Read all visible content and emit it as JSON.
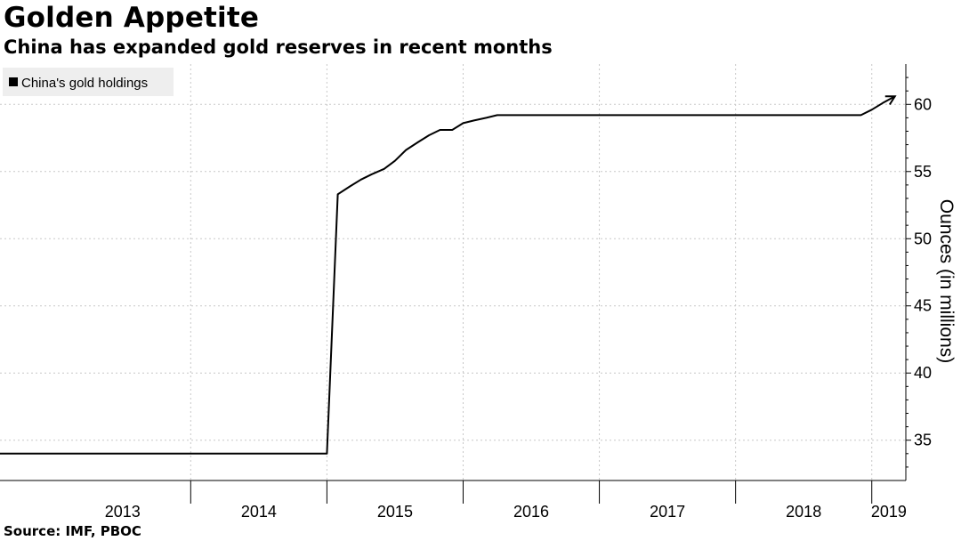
{
  "header": {
    "title": "Golden Appetite",
    "subtitle": "China has expanded gold reserves in recent months"
  },
  "footer": {
    "source": "Source: IMF, PBOC"
  },
  "legend": {
    "label": "China's gold holdings",
    "swatch_color": "#000000",
    "placement": "top-left"
  },
  "chart_data": {
    "type": "line",
    "title": "Golden Appetite",
    "subtitle": "China has expanded gold reserves in recent months",
    "ylabel": "Ounces (in millions)",
    "xlabel": "",
    "ylim": [
      32,
      63
    ],
    "xlim": [
      2012.6,
      2019.25
    ],
    "yticks": [
      35,
      40,
      45,
      50,
      55,
      60
    ],
    "x_year_labels": [
      "2013",
      "2014",
      "2015",
      "2016",
      "2017",
      "2018",
      "2019"
    ],
    "grid": true,
    "y_axis_side": "right",
    "line_color": "#000000",
    "series": [
      {
        "name": "China's gold holdings",
        "x": [
          2012.6,
          2015.0,
          2015.08,
          2015.17,
          2015.25,
          2015.33,
          2015.42,
          2015.5,
          2015.58,
          2015.67,
          2015.75,
          2015.83,
          2015.92,
          2016.0,
          2016.08,
          2016.17,
          2016.25,
          2016.42,
          2016.5,
          2018.92,
          2019.0,
          2019.08,
          2019.17
        ],
        "y": [
          34.0,
          34.0,
          53.3,
          53.9,
          54.4,
          54.8,
          55.2,
          55.8,
          56.6,
          57.2,
          57.7,
          58.1,
          58.1,
          58.6,
          58.8,
          59.0,
          59.2,
          59.2,
          59.2,
          59.2,
          59.6,
          60.1,
          60.6
        ]
      }
    ]
  }
}
